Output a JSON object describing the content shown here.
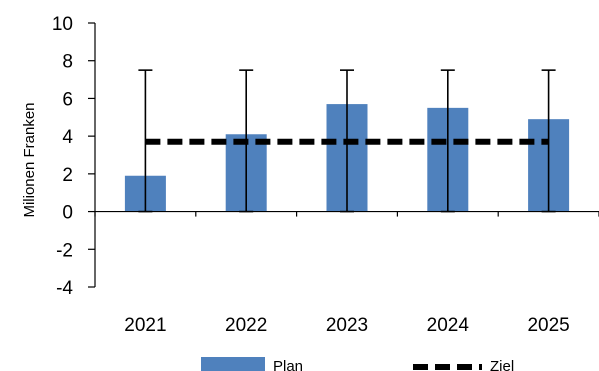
{
  "chart_data": {
    "type": "bar",
    "categories": [
      "2021",
      "2022",
      "2023",
      "2024",
      "2025"
    ],
    "series": [
      {
        "name": "Plan",
        "type": "bar",
        "color": "#4F81BD",
        "values": [
          1.9,
          4.1,
          5.7,
          5.5,
          4.9
        ],
        "error_low": [
          0,
          0,
          0,
          0,
          0
        ],
        "error_high": [
          7.5,
          7.5,
          7.5,
          7.5,
          7.5
        ]
      },
      {
        "name": "Ziel",
        "type": "line",
        "style": "dashed",
        "color": "#000000",
        "values": [
          3.7,
          3.7,
          3.7,
          3.7,
          3.7
        ]
      }
    ],
    "title": "",
    "xlabel": "",
    "ylabel": "Milionen Franken",
    "ylim": [
      -4,
      10
    ],
    "yticks": [
      -4,
      -2,
      0,
      2,
      4,
      6,
      8,
      10
    ],
    "grid": false,
    "legend_position": "bottom"
  }
}
